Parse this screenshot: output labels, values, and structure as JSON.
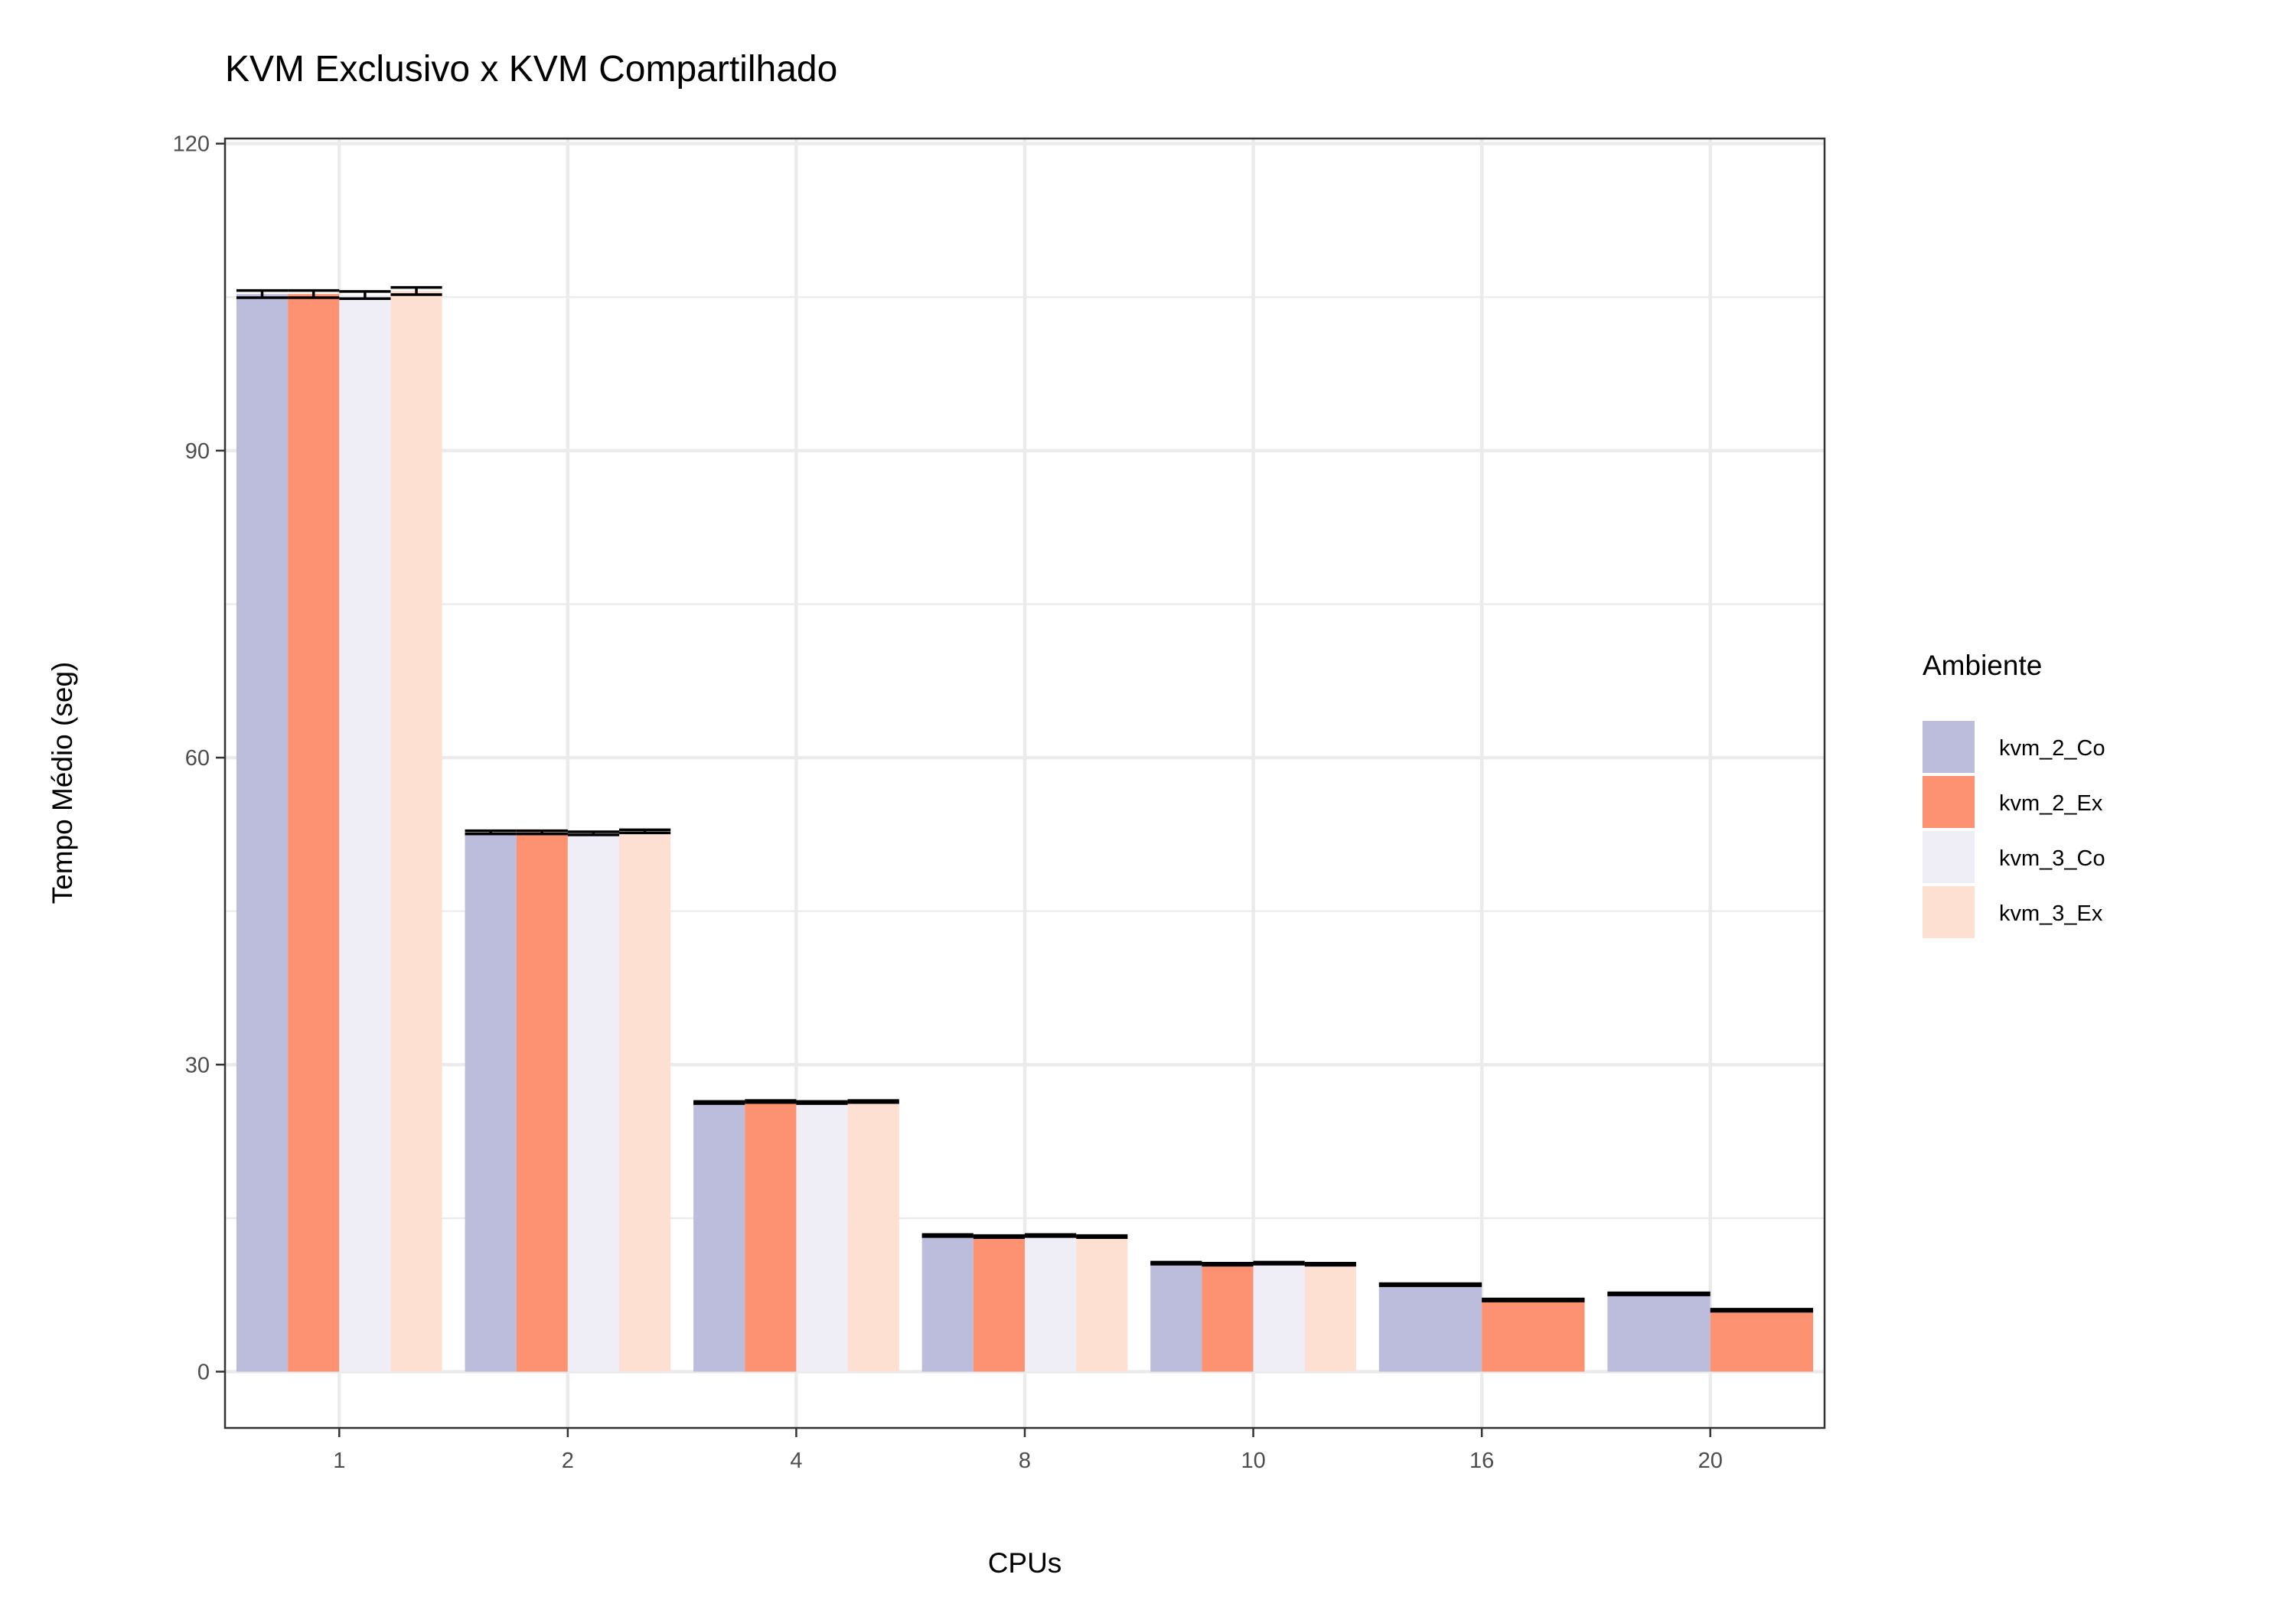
{
  "chart_data": {
    "type": "bar",
    "title": "KVM Exclusivo x KVM Compartilhado",
    "xlabel": "CPUs",
    "ylabel": "Tempo Médio (seg)",
    "categories": [
      "1",
      "2",
      "4",
      "8",
      "10",
      "16",
      "20"
    ],
    "yticks": [
      "0",
      "30",
      "60",
      "90",
      "120"
    ],
    "ylim": [
      -5.5,
      120.5
    ],
    "grid": true,
    "legend": {
      "title": "Ambiente",
      "placement": "right"
    },
    "series": [
      {
        "name": "kvm_2_Co",
        "color": "#bcbddc",
        "values": [
          105.3,
          52.7,
          26.3,
          13.3,
          10.6,
          8.5,
          7.6
        ]
      },
      {
        "name": "kvm_2_Ex",
        "color": "#fc9272",
        "values": [
          105.3,
          52.7,
          26.4,
          13.2,
          10.5,
          7.0,
          6.0
        ]
      },
      {
        "name": "kvm_3_Co",
        "color": "#efedf5",
        "values": [
          105.2,
          52.6,
          26.3,
          13.3,
          10.6,
          null,
          null
        ]
      },
      {
        "name": "kvm_3_Ex",
        "color": "#fee0d2",
        "values": [
          105.6,
          52.8,
          26.4,
          13.2,
          10.5,
          null,
          null
        ]
      }
    ],
    "error_half_width": [
      0.35,
      0.15,
      0.1,
      0.1,
      0.1,
      0.1,
      0.1
    ]
  }
}
